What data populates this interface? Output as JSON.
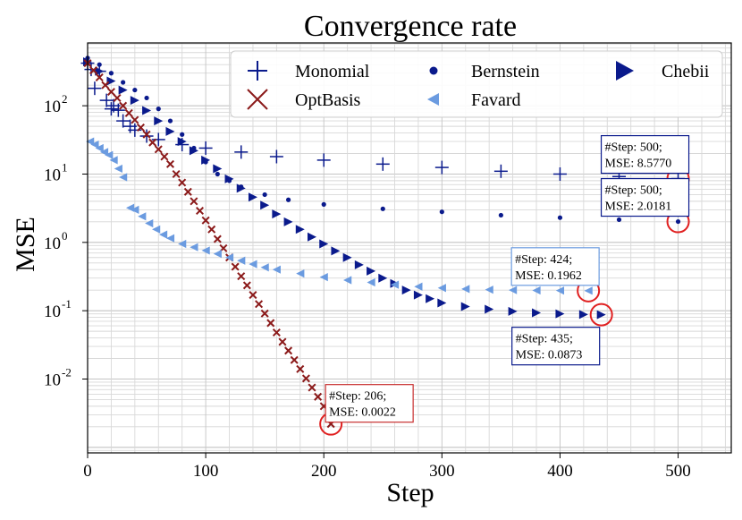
{
  "chart_data": {
    "type": "scatter",
    "title": "Convergence rate",
    "xlabel": "Step",
    "ylabel": "MSE",
    "xlim": [
      0,
      545
    ],
    "ylim": [
      0.00083,
      830
    ],
    "yscale": "log",
    "grid": true,
    "legend_position": "top-right",
    "x_ticks": [
      0,
      100,
      200,
      300,
      400,
      500
    ],
    "x_tick_labels": [
      "0",
      "100",
      "200",
      "300",
      "400",
      "500"
    ],
    "y_ticks": [
      0.01,
      0.1,
      1,
      10,
      100
    ],
    "y_tick_labels": [
      "10",
      "10",
      "10",
      "10",
      "10"
    ],
    "y_tick_exponents": [
      "-2",
      "-1",
      "0",
      "1",
      "2"
    ],
    "series": [
      {
        "name": "Monomial",
        "marker": "plus",
        "color": "#0a1a8c",
        "size": 7.5,
        "points": [
          [
            0,
            420
          ],
          [
            3,
            340
          ],
          [
            6,
            180
          ],
          [
            10,
            320
          ],
          [
            16,
            120
          ],
          [
            20,
            90
          ],
          [
            22,
            100
          ],
          [
            26,
            86
          ],
          [
            30,
            60
          ],
          [
            36,
            50
          ],
          [
            40,
            44
          ],
          [
            50,
            36
          ],
          [
            60,
            32
          ],
          [
            80,
            27
          ],
          [
            100,
            24
          ],
          [
            130,
            21
          ],
          [
            160,
            18
          ],
          [
            200,
            16
          ],
          [
            250,
            14
          ],
          [
            300,
            12.5
          ],
          [
            350,
            11
          ],
          [
            400,
            10
          ],
          [
            450,
            9.2
          ],
          [
            500,
            8.577
          ]
        ]
      },
      {
        "name": "Bernstein",
        "marker": "circle",
        "color": "#0a1a8c",
        "size": 2.6,
        "points": [
          [
            0,
            500
          ],
          [
            10,
            400
          ],
          [
            20,
            300
          ],
          [
            30,
            220
          ],
          [
            40,
            170
          ],
          [
            50,
            130
          ],
          [
            60,
            90
          ],
          [
            70,
            60
          ],
          [
            80,
            38
          ],
          [
            90,
            24
          ],
          [
            100,
            15
          ],
          [
            110,
            10
          ],
          [
            120,
            8
          ],
          [
            130,
            6.5
          ],
          [
            150,
            5
          ],
          [
            170,
            4.2
          ],
          [
            200,
            3.6
          ],
          [
            250,
            3.1
          ],
          [
            300,
            2.8
          ],
          [
            350,
            2.5
          ],
          [
            400,
            2.3
          ],
          [
            450,
            2.15
          ],
          [
            500,
            2.018
          ]
        ]
      },
      {
        "name": "Chebii",
        "marker": "triangle-right",
        "color": "#0a1a8c",
        "size": 5,
        "points": [
          [
            0,
            440
          ],
          [
            10,
            320
          ],
          [
            20,
            230
          ],
          [
            30,
            170
          ],
          [
            40,
            120
          ],
          [
            50,
            85
          ],
          [
            60,
            60
          ],
          [
            70,
            42
          ],
          [
            80,
            30
          ],
          [
            90,
            22
          ],
          [
            100,
            16
          ],
          [
            110,
            12
          ],
          [
            120,
            8.5
          ],
          [
            130,
            6.2
          ],
          [
            140,
            4.6
          ],
          [
            150,
            3.5
          ],
          [
            160,
            2.6
          ],
          [
            170,
            2
          ],
          [
            180,
            1.55
          ],
          [
            190,
            1.2
          ],
          [
            200,
            0.95
          ],
          [
            210,
            0.75
          ],
          [
            220,
            0.6
          ],
          [
            230,
            0.47
          ],
          [
            240,
            0.38
          ],
          [
            250,
            0.3
          ],
          [
            260,
            0.25
          ],
          [
            270,
            0.2
          ],
          [
            280,
            0.17
          ],
          [
            290,
            0.15
          ],
          [
            300,
            0.13
          ],
          [
            320,
            0.115
          ],
          [
            340,
            0.105
          ],
          [
            360,
            0.098
          ],
          [
            380,
            0.093
          ],
          [
            400,
            0.09
          ],
          [
            420,
            0.088
          ],
          [
            435,
            0.0873
          ]
        ]
      },
      {
        "name": "OptBasis",
        "marker": "x",
        "color": "#8b1a1a",
        "size": 3.8,
        "points": [
          [
            0,
            420
          ],
          [
            5,
            330
          ],
          [
            10,
            260
          ],
          [
            15,
            200
          ],
          [
            20,
            160
          ],
          [
            25,
            130
          ],
          [
            30,
            100
          ],
          [
            35,
            78
          ],
          [
            40,
            62
          ],
          [
            45,
            48
          ],
          [
            50,
            38
          ],
          [
            55,
            29
          ],
          [
            60,
            23
          ],
          [
            65,
            18
          ],
          [
            70,
            14
          ],
          [
            75,
            10
          ],
          [
            80,
            7.5
          ],
          [
            85,
            5.5
          ],
          [
            90,
            4
          ],
          [
            95,
            2.9
          ],
          [
            100,
            2.1
          ],
          [
            105,
            1.55
          ],
          [
            110,
            1.12
          ],
          [
            115,
            0.82
          ],
          [
            120,
            0.6
          ],
          [
            125,
            0.44
          ],
          [
            130,
            0.32
          ],
          [
            135,
            0.235
          ],
          [
            140,
            0.17
          ],
          [
            145,
            0.125
          ],
          [
            150,
            0.091
          ],
          [
            155,
            0.066
          ],
          [
            160,
            0.048
          ],
          [
            165,
            0.035
          ],
          [
            170,
            0.026
          ],
          [
            175,
            0.019
          ],
          [
            180,
            0.014
          ],
          [
            185,
            0.0102
          ],
          [
            190,
            0.0075
          ],
          [
            195,
            0.0055
          ],
          [
            200,
            0.004
          ],
          [
            206,
            0.0022
          ]
        ]
      },
      {
        "name": "Favard",
        "marker": "triangle-left",
        "color": "#6b9be0",
        "size": 4.6,
        "points": [
          [
            2,
            30
          ],
          [
            6,
            27
          ],
          [
            10,
            24
          ],
          [
            14,
            21
          ],
          [
            18,
            19
          ],
          [
            22,
            16
          ],
          [
            26,
            12
          ],
          [
            30,
            9
          ],
          [
            36,
            3.2
          ],
          [
            40,
            3
          ],
          [
            46,
            2.4
          ],
          [
            52,
            1.9
          ],
          [
            58,
            1.55
          ],
          [
            64,
            1.3
          ],
          [
            70,
            1.15
          ],
          [
            80,
            0.95
          ],
          [
            90,
            0.85
          ],
          [
            100,
            0.76
          ],
          [
            110,
            0.68
          ],
          [
            120,
            0.6
          ],
          [
            130,
            0.54
          ],
          [
            140,
            0.48
          ],
          [
            150,
            0.43
          ],
          [
            160,
            0.4
          ],
          [
            180,
            0.35
          ],
          [
            200,
            0.31
          ],
          [
            220,
            0.28
          ],
          [
            240,
            0.26
          ],
          [
            260,
            0.24
          ],
          [
            280,
            0.225
          ],
          [
            300,
            0.215
          ],
          [
            320,
            0.208
          ],
          [
            340,
            0.203
          ],
          [
            360,
            0.2
          ],
          [
            380,
            0.198
          ],
          [
            400,
            0.197
          ],
          [
            424,
            0.1962
          ]
        ]
      }
    ],
    "annotations": [
      {
        "line1": "#Step: 500;",
        "line2": " MSE: 8.5770",
        "x": 500,
        "y": 8.577,
        "border": "#0a1a8c",
        "anchor": "above-left"
      },
      {
        "line1": "#Step: 500;",
        "line2": " MSE: 2.0181",
        "x": 500,
        "y": 2.0181,
        "border": "#0a1a8c",
        "anchor": "above-left"
      },
      {
        "line1": "#Step: 424;",
        "line2": " MSE: 0.1962",
        "x": 424,
        "y": 0.1962,
        "border": "#6b9be0",
        "anchor": "above-left"
      },
      {
        "line1": "#Step: 435;",
        "line2": " MSE: 0.0873",
        "x": 435,
        "y": 0.0873,
        "border": "#0a1a8c",
        "anchor": "below-left"
      },
      {
        "line1": "#Step: 206;",
        "line2": " MSE: 0.0022",
        "x": 206,
        "y": 0.0022,
        "border": "#c83030",
        "anchor": "above-right"
      }
    ]
  }
}
